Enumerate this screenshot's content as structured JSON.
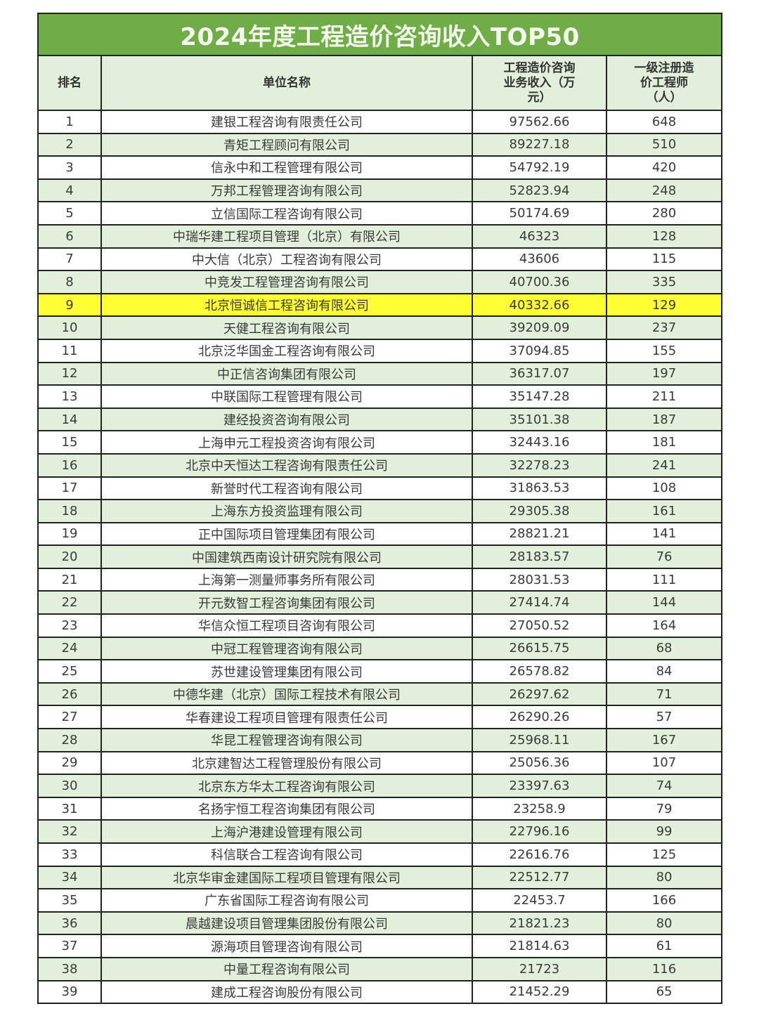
{
  "title": "2024年度工程造价咨询收入TOP50",
  "headers": {
    "rank": "排名",
    "name": "单位名称",
    "revenue": "工程造价咨询业务收入（万元）",
    "engineers": "一级注册造价工程师（人）"
  },
  "colors": {
    "title_bg": "#70ad47",
    "stripe": "#e2efda",
    "highlight": "#ffff33"
  },
  "highlighted_rank": "9",
  "rows": [
    {
      "rank": "1",
      "name": "建银工程咨询有限责任公司",
      "revenue": "97562.66",
      "engineers": "648"
    },
    {
      "rank": "2",
      "name": "青矩工程顾问有限公司",
      "revenue": "89227.18",
      "engineers": "510"
    },
    {
      "rank": "3",
      "name": "信永中和工程管理有限公司",
      "revenue": "54792.19",
      "engineers": "420"
    },
    {
      "rank": "4",
      "name": "万邦工程管理咨询有限公司",
      "revenue": "52823.94",
      "engineers": "248"
    },
    {
      "rank": "5",
      "name": "立信国际工程咨询有限公司",
      "revenue": "50174.69",
      "engineers": "280"
    },
    {
      "rank": "6",
      "name": "中瑞华建工程项目管理（北京）有限公司",
      "revenue": "46323",
      "engineers": "128"
    },
    {
      "rank": "7",
      "name": "中大信（北京）工程咨询有限公司",
      "revenue": "43606",
      "engineers": "115"
    },
    {
      "rank": "8",
      "name": "中竞发工程管理咨询有限公司",
      "revenue": "40700.36",
      "engineers": "335"
    },
    {
      "rank": "9",
      "name": "北京恒诚信工程咨询有限公司",
      "revenue": "40332.66",
      "engineers": "129"
    },
    {
      "rank": "10",
      "name": "天健工程咨询有限公司",
      "revenue": "39209.09",
      "engineers": "237"
    },
    {
      "rank": "11",
      "name": "北京泛华国金工程咨询有限公司",
      "revenue": "37094.85",
      "engineers": "155"
    },
    {
      "rank": "12",
      "name": "中正信咨询集团有限公司",
      "revenue": "36317.07",
      "engineers": "197"
    },
    {
      "rank": "13",
      "name": "中联国际工程管理有限公司",
      "revenue": "35147.28",
      "engineers": "211"
    },
    {
      "rank": "14",
      "name": "建经投资咨询有限公司",
      "revenue": "35101.38",
      "engineers": "187"
    },
    {
      "rank": "15",
      "name": "上海申元工程投资咨询有限公司",
      "revenue": "32443.16",
      "engineers": "181"
    },
    {
      "rank": "16",
      "name": "北京中天恒达工程咨询有限责任公司",
      "revenue": "32278.23",
      "engineers": "241"
    },
    {
      "rank": "17",
      "name": "新誉时代工程咨询有限公司",
      "revenue": "31863.53",
      "engineers": "108"
    },
    {
      "rank": "18",
      "name": "上海东方投资监理有限公司",
      "revenue": "29305.38",
      "engineers": "161"
    },
    {
      "rank": "19",
      "name": "正中国际项目管理集团有限公司",
      "revenue": "28821.21",
      "engineers": "141"
    },
    {
      "rank": "20",
      "name": "中国建筑西南设计研究院有限公司",
      "revenue": "28183.57",
      "engineers": "76"
    },
    {
      "rank": "21",
      "name": "上海第一测量师事务所有限公司",
      "revenue": "28031.53",
      "engineers": "111"
    },
    {
      "rank": "22",
      "name": "开元数智工程咨询集团有限公司",
      "revenue": "27414.74",
      "engineers": "144"
    },
    {
      "rank": "23",
      "name": "华信众恒工程项目咨询有限公司",
      "revenue": "27050.52",
      "engineers": "164"
    },
    {
      "rank": "24",
      "name": "中冠工程管理咨询有限公司",
      "revenue": "26615.75",
      "engineers": "68"
    },
    {
      "rank": "25",
      "name": "苏世建设管理集团有限公司",
      "revenue": "26578.82",
      "engineers": "84"
    },
    {
      "rank": "26",
      "name": "中德华建（北京）国际工程技术有限公司",
      "revenue": "26297.62",
      "engineers": "71"
    },
    {
      "rank": "27",
      "name": "华春建设工程项目管理有限责任公司",
      "revenue": "26290.26",
      "engineers": "57"
    },
    {
      "rank": "28",
      "name": "华昆工程管理咨询有限公司",
      "revenue": "25968.11",
      "engineers": "167"
    },
    {
      "rank": "29",
      "name": "北京建智达工程管理股份有限公司",
      "revenue": "25056.36",
      "engineers": "107"
    },
    {
      "rank": "30",
      "name": "北京东方华太工程咨询有限公司",
      "revenue": "23397.63",
      "engineers": "74"
    },
    {
      "rank": "31",
      "name": "名扬宇恒工程咨询集团有限公司",
      "revenue": "23258.9",
      "engineers": "79"
    },
    {
      "rank": "32",
      "name": "上海沪港建设管理有限公司",
      "revenue": "22796.16",
      "engineers": "99"
    },
    {
      "rank": "33",
      "name": "科信联合工程咨询有限公司",
      "revenue": "22616.76",
      "engineers": "125"
    },
    {
      "rank": "34",
      "name": "北京华审金建国际工程项目管理有限公司",
      "revenue": "22512.77",
      "engineers": "80"
    },
    {
      "rank": "35",
      "name": "广东省国际工程咨询有限公司",
      "revenue": "22453.7",
      "engineers": "166"
    },
    {
      "rank": "36",
      "name": "晨越建设项目管理集团股份有限公司",
      "revenue": "21821.23",
      "engineers": "80"
    },
    {
      "rank": "37",
      "name": "源海项目管理咨询有限公司",
      "revenue": "21814.63",
      "engineers": "61"
    },
    {
      "rank": "38",
      "name": "中量工程咨询有限公司",
      "revenue": "21723",
      "engineers": "116"
    },
    {
      "rank": "39",
      "name": "建成工程咨询股份有限公司",
      "revenue": "21452.29",
      "engineers": "65"
    }
  ]
}
